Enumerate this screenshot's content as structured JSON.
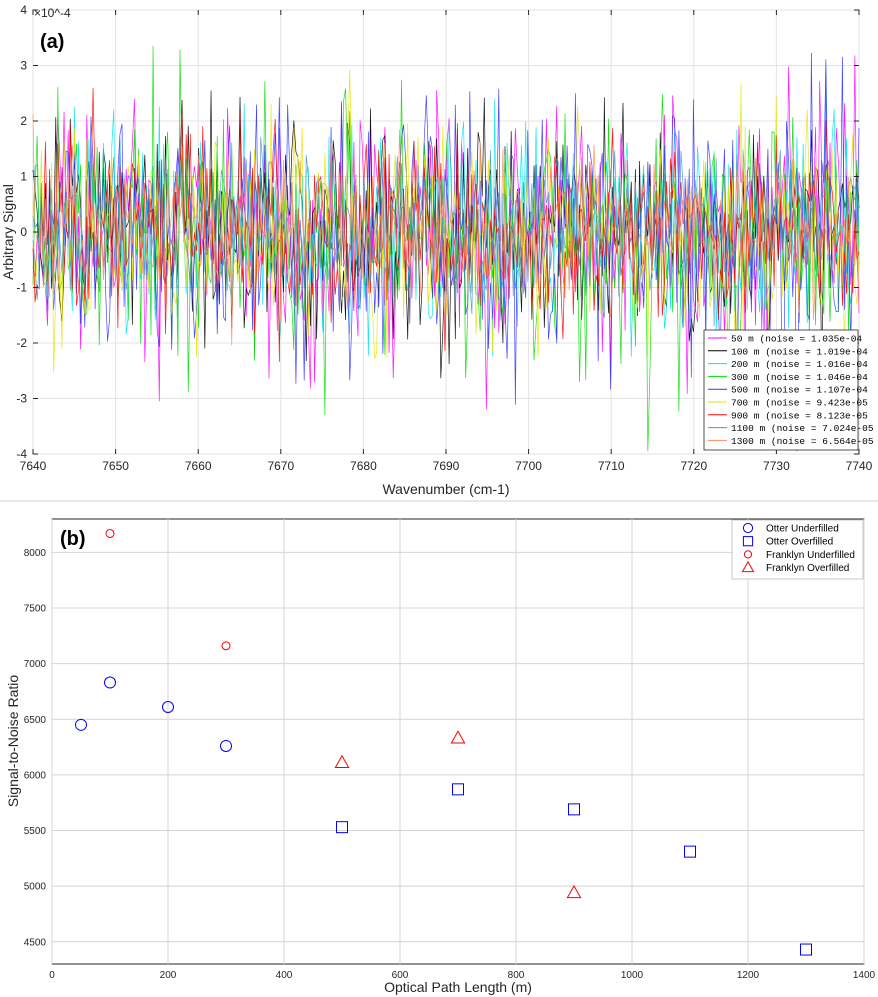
{
  "chart_data": [
    {
      "panel_label": "(a)",
      "type": "line",
      "xlabel": "Wavenumber (cm-1)",
      "ylabel": "Arbitrary Signal",
      "y_multiplier_label": "×10^-4",
      "xlim": [
        7640,
        7740
      ],
      "ylim": [
        -4,
        4
      ],
      "x_ticks": [
        "7640",
        "7650",
        "7660",
        "7670",
        "7680",
        "7690",
        "7700",
        "7710",
        "7720",
        "7730",
        "7740"
      ],
      "y_ticks": [
        "-4",
        "-3",
        "-2",
        "-1",
        "0",
        "1",
        "2",
        "3",
        "4"
      ],
      "grid": true,
      "legend_position": "bottom-right",
      "series": [
        {
          "name": "50 m    (noise = 1.035e-04",
          "color": "#ff00ff",
          "noise": 1.035
        },
        {
          "name": "100 m   (noise = 1.019e-04",
          "color": "#000000",
          "noise": 1.019
        },
        {
          "name": "200 m   (noise = 1.016e-04",
          "color": "#00e5e5",
          "noise": 1.016
        },
        {
          "name": "300 m   (noise = 1.046e-04",
          "color": "#00dd00",
          "noise": 1.046
        },
        {
          "name": "500 m   (noise = 1.107e-04",
          "color": "#3333ff",
          "noise": 1.107
        },
        {
          "name": "700 m   (noise = 9.423e-05",
          "color": "#e5e500",
          "noise": 0.9423
        },
        {
          "name": "900 m   (noise = 8.123e-05",
          "color": "#ff0000",
          "noise": 0.8123
        },
        {
          "name": "1100 m (noise = 7.024e-05",
          "color": "#4f95c8",
          "noise": 0.7024
        },
        {
          "name": "1300 m (noise = 6.564e-05",
          "color": "#ff8a5c",
          "noise": 0.6564
        }
      ]
    },
    {
      "panel_label": "(b)",
      "type": "scatter",
      "xlabel": "Optical Path Length (m)",
      "ylabel": "Signal-to-Noise Ratio",
      "xlim": [
        0,
        1400
      ],
      "ylim": [
        4300,
        8300
      ],
      "x_ticks": [
        "0",
        "200",
        "400",
        "600",
        "800",
        "1000",
        "1200",
        "1400"
      ],
      "y_ticks": [
        "4500",
        "5000",
        "5500",
        "6000",
        "6500",
        "7000",
        "7500",
        "8000"
      ],
      "grid": true,
      "legend_position": "top-right",
      "series": [
        {
          "name": "Otter Underfilled",
          "marker": "circle",
          "color": "#0000ff",
          "x": [
            50,
            100,
            200,
            300
          ],
          "y": [
            6450,
            6830,
            6610,
            6260
          ]
        },
        {
          "name": "Otter Overfilled",
          "marker": "square",
          "color": "#0000ff",
          "x": [
            500,
            700,
            900,
            1100,
            1300
          ],
          "y": [
            5530,
            5870,
            5690,
            5310,
            4430
          ]
        },
        {
          "name": "Franklyn Underfilled",
          "marker": "circle",
          "color": "#ff0000",
          "x": [
            100,
            300
          ],
          "y": [
            8170,
            7160
          ]
        },
        {
          "name": "Franklyn Overfilled",
          "marker": "triangle",
          "color": "#ff0000",
          "x": [
            500,
            700,
            900
          ],
          "y": [
            6110,
            6330,
            4940
          ]
        }
      ]
    }
  ]
}
